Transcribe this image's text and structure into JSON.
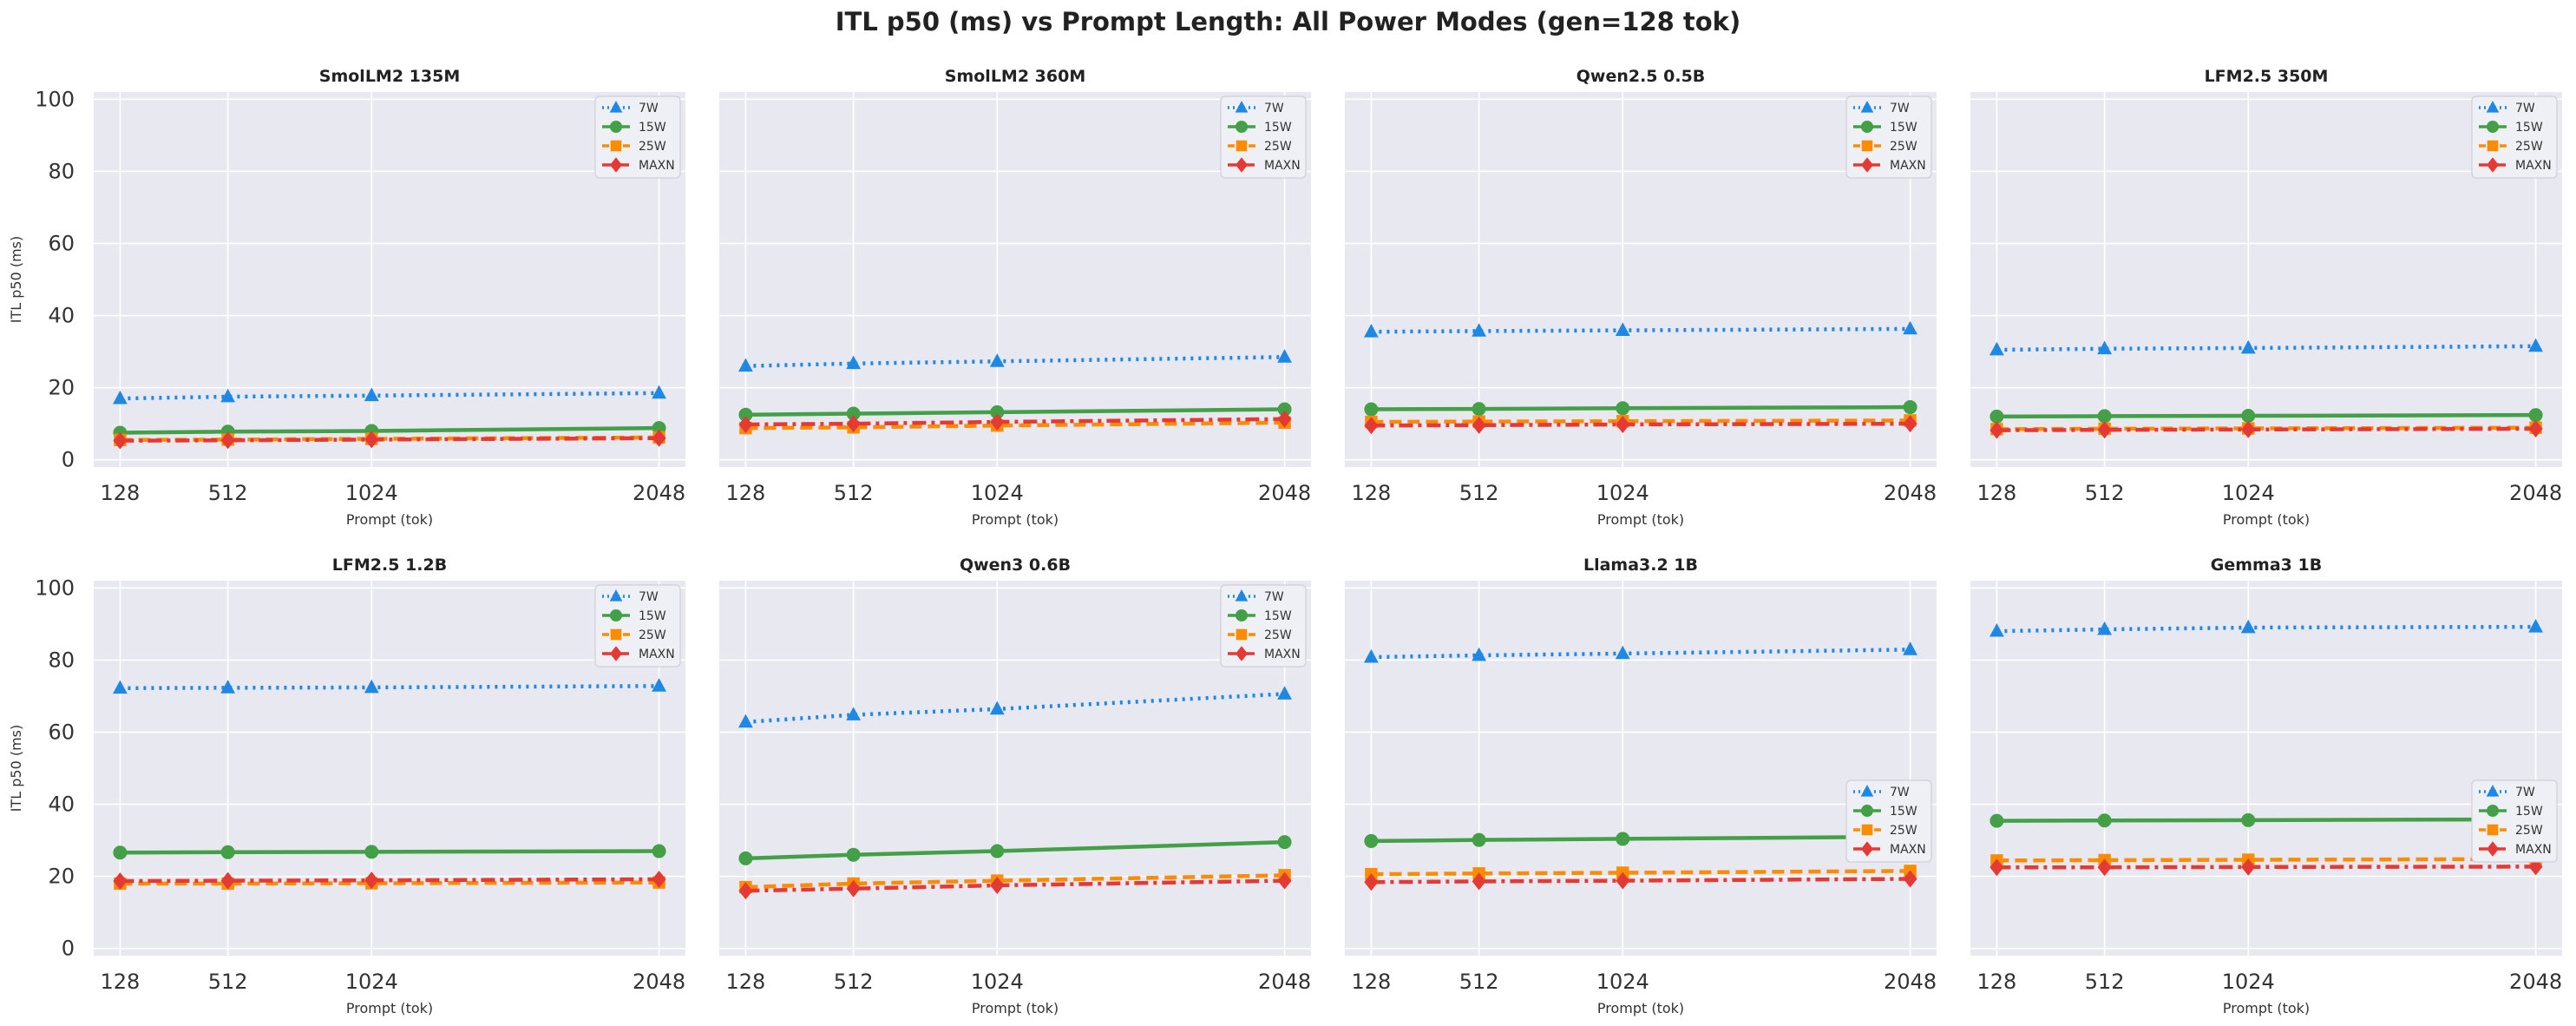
{
  "figure": {
    "title": "ITL p50 (ms) vs Prompt Length: All Power Modes (gen=128 tok)"
  },
  "style": {
    "panel_bg": "#e8e8f0",
    "grid_color": "#ffffff",
    "series_colors": {
      "7W": "#1e88e5",
      "15W": "#43a047",
      "25W": "#fb8c00",
      "MAXN": "#e53935"
    }
  },
  "chart_data": [
    {
      "type": "line",
      "title": "SmolLM2 135M",
      "xlabel": "Prompt (tok)",
      "ylabel": "ITL p50 (ms)",
      "x": [
        128,
        512,
        1024,
        2048
      ],
      "ylim": [
        0,
        100
      ],
      "yticks": [
        0,
        20,
        40,
        60,
        80,
        100
      ],
      "xticks": [
        128,
        512,
        1024,
        2048
      ],
      "grid": true,
      "legend": "upper right",
      "series": [
        {
          "name": "7W",
          "marker": "triangle",
          "linestyle": "dotted",
          "values": [
            17.0,
            17.5,
            17.8,
            18.5
          ]
        },
        {
          "name": "15W",
          "marker": "circle",
          "linestyle": "solid",
          "values": [
            7.5,
            7.8,
            8.0,
            8.8
          ]
        },
        {
          "name": "25W",
          "marker": "square",
          "linestyle": "dashed",
          "values": [
            5.5,
            5.6,
            5.8,
            6.2
          ]
        },
        {
          "name": "MAXN",
          "marker": "diamond",
          "linestyle": "dashdot",
          "values": [
            5.3,
            5.4,
            5.6,
            6.0
          ]
        }
      ]
    },
    {
      "type": "line",
      "title": "SmolLM2 360M",
      "xlabel": "Prompt (tok)",
      "ylabel": "",
      "x": [
        128,
        512,
        1024,
        2048
      ],
      "ylim": [
        0,
        100
      ],
      "yticks": [
        0,
        20,
        40,
        60,
        80,
        100
      ],
      "xticks": [
        128,
        512,
        1024,
        2048
      ],
      "grid": true,
      "legend": "upper right",
      "series": [
        {
          "name": "7W",
          "marker": "triangle",
          "linestyle": "dotted",
          "values": [
            26.0,
            26.7,
            27.3,
            28.5
          ]
        },
        {
          "name": "15W",
          "marker": "circle",
          "linestyle": "solid",
          "values": [
            12.5,
            12.8,
            13.2,
            14.0
          ]
        },
        {
          "name": "25W",
          "marker": "square",
          "linestyle": "dashed",
          "values": [
            8.8,
            9.0,
            9.5,
            10.3
          ]
        },
        {
          "name": "MAXN",
          "marker": "diamond",
          "linestyle": "dashdot",
          "values": [
            9.8,
            10.0,
            10.5,
            11.3
          ]
        }
      ]
    },
    {
      "type": "line",
      "title": "Qwen2.5 0.5B",
      "xlabel": "Prompt (tok)",
      "ylabel": "",
      "x": [
        128,
        512,
        1024,
        2048
      ],
      "ylim": [
        0,
        100
      ],
      "yticks": [
        0,
        20,
        40,
        60,
        80,
        100
      ],
      "xticks": [
        128,
        512,
        1024,
        2048
      ],
      "grid": true,
      "legend": "upper right",
      "series": [
        {
          "name": "7W",
          "marker": "triangle",
          "linestyle": "dotted",
          "values": [
            35.5,
            35.7,
            35.9,
            36.3
          ]
        },
        {
          "name": "15W",
          "marker": "circle",
          "linestyle": "solid",
          "values": [
            14.0,
            14.1,
            14.3,
            14.6
          ]
        },
        {
          "name": "25W",
          "marker": "square",
          "linestyle": "dashed",
          "values": [
            10.5,
            10.6,
            10.7,
            10.9
          ]
        },
        {
          "name": "MAXN",
          "marker": "diamond",
          "linestyle": "dashdot",
          "values": [
            9.5,
            9.6,
            9.8,
            10.0
          ]
        }
      ]
    },
    {
      "type": "line",
      "title": "LFM2.5 350M",
      "xlabel": "Prompt (tok)",
      "ylabel": "",
      "x": [
        128,
        512,
        1024,
        2048
      ],
      "ylim": [
        0,
        100
      ],
      "yticks": [
        0,
        20,
        40,
        60,
        80,
        100
      ],
      "xticks": [
        128,
        512,
        1024,
        2048
      ],
      "grid": true,
      "legend": "upper right",
      "series": [
        {
          "name": "7W",
          "marker": "triangle",
          "linestyle": "dotted",
          "values": [
            30.5,
            30.8,
            31.0,
            31.5
          ]
        },
        {
          "name": "15W",
          "marker": "circle",
          "linestyle": "solid",
          "values": [
            12.0,
            12.1,
            12.2,
            12.4
          ]
        },
        {
          "name": "25W",
          "marker": "square",
          "linestyle": "dashed",
          "values": [
            8.5,
            8.6,
            8.7,
            8.9
          ]
        },
        {
          "name": "MAXN",
          "marker": "diamond",
          "linestyle": "dashdot",
          "values": [
            8.2,
            8.3,
            8.4,
            8.6
          ]
        }
      ]
    },
    {
      "type": "line",
      "title": "LFM2.5 1.2B",
      "xlabel": "Prompt (tok)",
      "ylabel": "ITL p50 (ms)",
      "x": [
        128,
        512,
        1024,
        2048
      ],
      "ylim": [
        0,
        100
      ],
      "yticks": [
        0,
        20,
        40,
        60,
        80,
        100
      ],
      "xticks": [
        128,
        512,
        1024,
        2048
      ],
      "grid": true,
      "legend": "upper right",
      "series": [
        {
          "name": "7W",
          "marker": "triangle",
          "linestyle": "dotted",
          "values": [
            72.2,
            72.3,
            72.4,
            72.8
          ]
        },
        {
          "name": "15W",
          "marker": "circle",
          "linestyle": "solid",
          "values": [
            26.6,
            26.7,
            26.8,
            27.0
          ]
        },
        {
          "name": "25W",
          "marker": "square",
          "linestyle": "dashed",
          "values": [
            18.0,
            18.0,
            18.1,
            18.3
          ]
        },
        {
          "name": "MAXN",
          "marker": "diamond",
          "linestyle": "dashdot",
          "values": [
            18.7,
            18.8,
            18.9,
            19.2
          ]
        }
      ]
    },
    {
      "type": "line",
      "title": "Qwen3 0.6B",
      "xlabel": "Prompt (tok)",
      "ylabel": "",
      "x": [
        128,
        512,
        1024,
        2048
      ],
      "ylim": [
        0,
        100
      ],
      "yticks": [
        0,
        20,
        40,
        60,
        80,
        100
      ],
      "xticks": [
        128,
        512,
        1024,
        2048
      ],
      "grid": true,
      "legend": "upper right",
      "series": [
        {
          "name": "7W",
          "marker": "triangle",
          "linestyle": "dotted",
          "values": [
            62.8,
            64.8,
            66.4,
            70.6
          ]
        },
        {
          "name": "15W",
          "marker": "circle",
          "linestyle": "solid",
          "values": [
            25.0,
            26.0,
            27.0,
            29.5
          ]
        },
        {
          "name": "25W",
          "marker": "square",
          "linestyle": "dashed",
          "values": [
            17.0,
            18.0,
            18.8,
            20.3
          ]
        },
        {
          "name": "MAXN",
          "marker": "diamond",
          "linestyle": "dashdot",
          "values": [
            16.0,
            16.6,
            17.5,
            18.8
          ]
        }
      ]
    },
    {
      "type": "line",
      "title": "Llama3.2 1B",
      "xlabel": "Prompt (tok)",
      "ylabel": "",
      "x": [
        128,
        512,
        1024,
        2048
      ],
      "ylim": [
        0,
        100
      ],
      "yticks": [
        0,
        20,
        40,
        60,
        80,
        100
      ],
      "xticks": [
        128,
        512,
        1024,
        2048
      ],
      "grid": true,
      "legend": "center right",
      "series": [
        {
          "name": "7W",
          "marker": "triangle",
          "linestyle": "dotted",
          "values": [
            80.8,
            81.3,
            81.8,
            82.9
          ]
        },
        {
          "name": "15W",
          "marker": "circle",
          "linestyle": "solid",
          "values": [
            29.8,
            30.1,
            30.4,
            31.0
          ]
        },
        {
          "name": "25W",
          "marker": "square",
          "linestyle": "dashed",
          "values": [
            20.6,
            20.8,
            21.0,
            21.5
          ]
        },
        {
          "name": "MAXN",
          "marker": "diamond",
          "linestyle": "dashdot",
          "values": [
            18.4,
            18.6,
            18.8,
            19.3
          ]
        }
      ]
    },
    {
      "type": "line",
      "title": "Gemma3 1B",
      "xlabel": "Prompt (tok)",
      "ylabel": "",
      "x": [
        128,
        512,
        1024,
        2048
      ],
      "ylim": [
        0,
        100
      ],
      "yticks": [
        0,
        20,
        40,
        60,
        80,
        100
      ],
      "xticks": [
        128,
        512,
        1024,
        2048
      ],
      "grid": true,
      "legend": "center right",
      "series": [
        {
          "name": "7W",
          "marker": "triangle",
          "linestyle": "dotted",
          "values": [
            88.0,
            88.5,
            89.0,
            89.2
          ]
        },
        {
          "name": "15W",
          "marker": "circle",
          "linestyle": "solid",
          "values": [
            35.4,
            35.5,
            35.6,
            35.8
          ]
        },
        {
          "name": "25W",
          "marker": "square",
          "linestyle": "dashed",
          "values": [
            24.4,
            24.5,
            24.6,
            24.8
          ]
        },
        {
          "name": "MAXN",
          "marker": "diamond",
          "linestyle": "dashdot",
          "values": [
            22.5,
            22.5,
            22.6,
            22.7
          ]
        }
      ]
    }
  ]
}
